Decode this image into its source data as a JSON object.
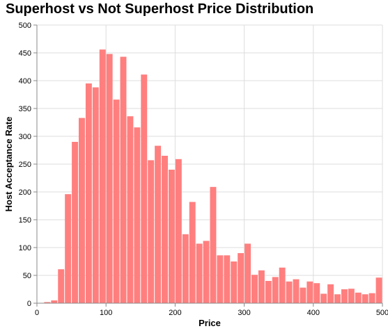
{
  "chart_data": {
    "type": "bar",
    "title": "Superhost vs Not Superhost Price Distribution",
    "xlabel": "Price",
    "ylabel": "Host Acceptance Rate",
    "xlim": [
      0,
      500
    ],
    "ylim": [
      0,
      500
    ],
    "bin_width": 10,
    "x_ticks": [
      "0",
      "100",
      "200",
      "300",
      "400",
      "500"
    ],
    "y_ticks": [
      "0",
      "50",
      "100",
      "150",
      "200",
      "250",
      "300",
      "350",
      "400",
      "450",
      "500"
    ],
    "grid": true,
    "color": "#ff7f7f",
    "bins": [
      0,
      10,
      20,
      30,
      40,
      50,
      60,
      70,
      80,
      90,
      100,
      110,
      120,
      130,
      140,
      150,
      160,
      170,
      180,
      190,
      200,
      210,
      220,
      230,
      240,
      250,
      260,
      270,
      280,
      290,
      300,
      310,
      320,
      330,
      340,
      350,
      360,
      370,
      380,
      390,
      400,
      410,
      420,
      430,
      440,
      450,
      460,
      470,
      480,
      490
    ],
    "values": [
      0,
      2,
      5,
      61,
      196,
      290,
      333,
      395,
      388,
      456,
      448,
      366,
      443,
      336,
      316,
      411,
      257,
      283,
      265,
      240,
      259,
      124,
      182,
      107,
      112,
      209,
      86,
      86,
      75,
      90,
      107,
      51,
      59,
      40,
      47,
      64,
      39,
      43,
      28,
      39,
      36,
      17,
      34,
      16,
      25,
      26,
      19,
      16,
      18,
      46
    ]
  }
}
